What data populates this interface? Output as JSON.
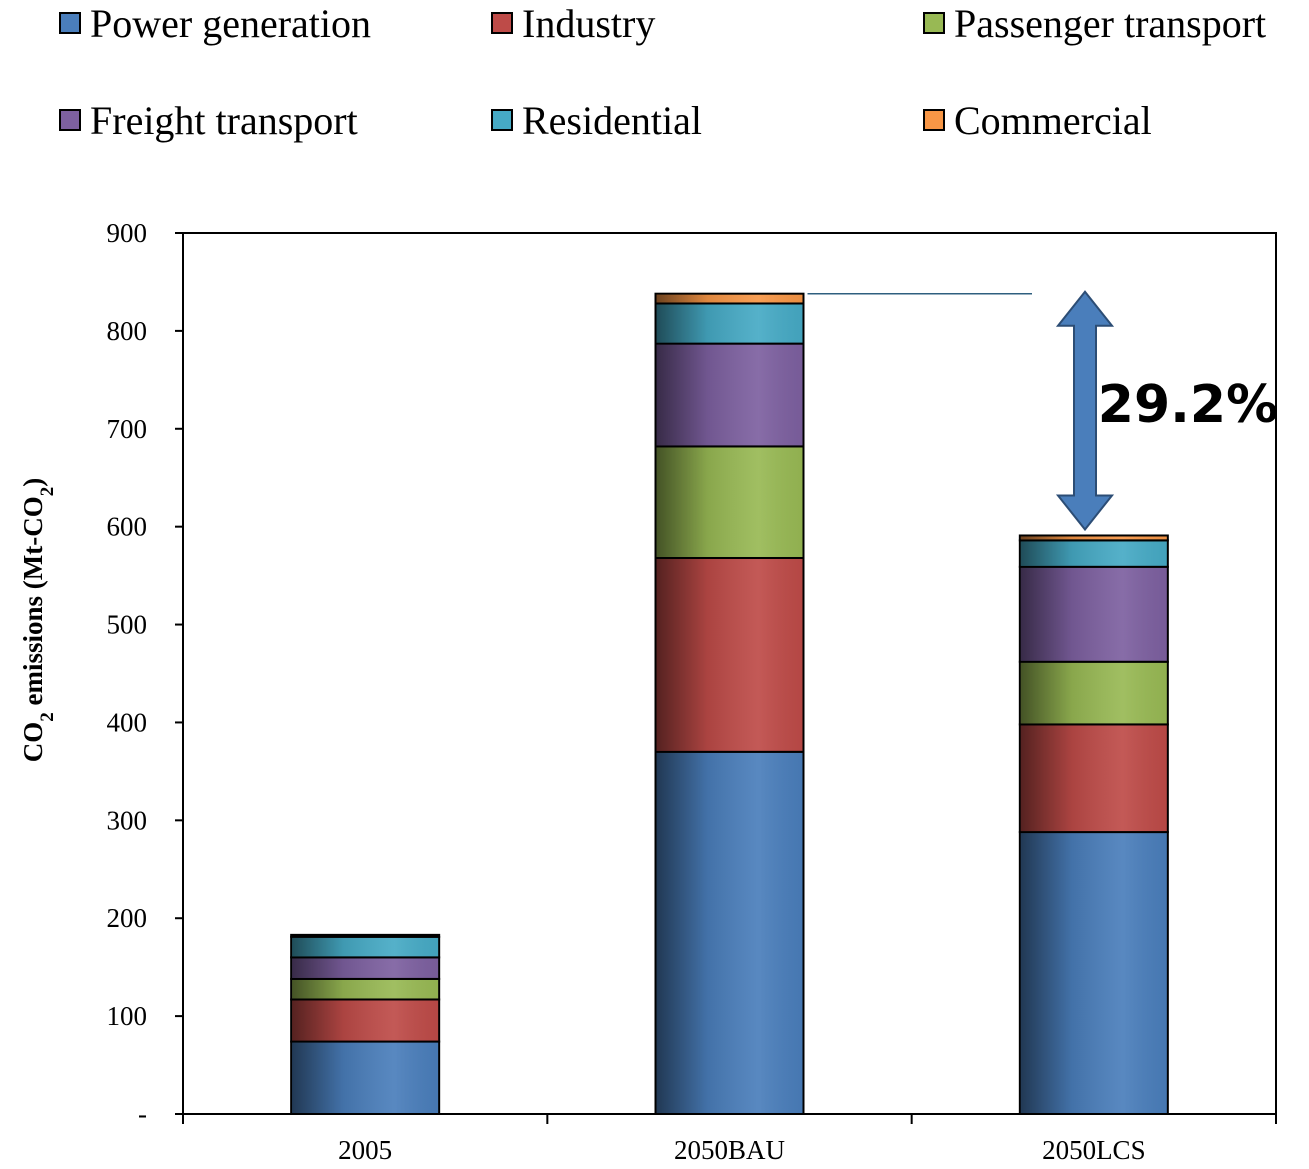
{
  "chart_data": {
    "type": "bar",
    "stacked": true,
    "categories": [
      "2005",
      "2050BAU",
      "2050LCS"
    ],
    "series": [
      {
        "name": "Power generation",
        "color": "#4a7ebb",
        "values": [
          74,
          370,
          288
        ]
      },
      {
        "name": "Industry",
        "color": "#be4b48",
        "values": [
          43,
          198,
          110
        ]
      },
      {
        "name": "Passenger transport",
        "color": "#98b954",
        "values": [
          21,
          114,
          64
        ]
      },
      {
        "name": "Freight transport",
        "color": "#7d60a0",
        "values": [
          22,
          105,
          97
        ]
      },
      {
        "name": "Residential",
        "color": "#46aac5",
        "values": [
          21,
          41,
          27
        ]
      },
      {
        "name": "Commercial",
        "color": "#f79646",
        "values": [
          2,
          10,
          5
        ]
      }
    ],
    "y_ticks": [
      "-",
      "100",
      "200",
      "300",
      "400",
      "500",
      "600",
      "700",
      "800",
      "900"
    ],
    "ylim": [
      0,
      900
    ],
    "ylabel": {
      "main": "CO",
      "sub": "2",
      "rest": " emissions (Mt-CO",
      "sub2": "2",
      "end": ")"
    },
    "legend_position": "top",
    "annotation": {
      "text": "29.2%",
      "from_category": "2050BAU",
      "to_category": "2050LCS",
      "arrow_color": "#4a7ebb"
    },
    "grid": false
  }
}
